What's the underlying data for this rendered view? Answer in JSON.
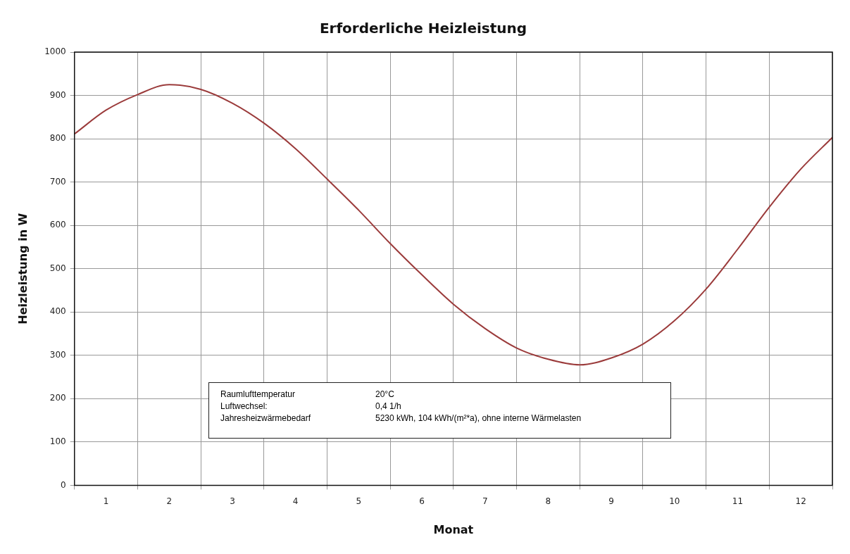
{
  "chart_data": {
    "type": "line",
    "title": "Erforderliche Heizleistung",
    "xlabel": "Monat",
    "ylabel": "Heizleistung in W",
    "x": [
      0,
      0.5,
      1,
      1.5,
      2,
      2.5,
      3,
      3.5,
      4,
      4.5,
      5,
      5.5,
      6,
      6.5,
      7,
      7.5,
      8,
      8.5,
      9,
      9.5,
      10,
      10.5,
      11,
      11.5,
      12
    ],
    "series": [
      {
        "color": "#9b3b3b",
        "values": [
          811,
          866,
          902,
          925,
          914,
          882,
          836,
          777,
          707,
          635,
          558,
          486,
          418,
          362,
          317,
          291,
          278,
          294,
          326,
          380,
          453,
          545,
          642,
          730,
          803
        ]
      }
    ],
    "xlim": [
      0,
      12
    ],
    "xticks": [
      {
        "value": 0,
        "label": null
      },
      {
        "value": 0.5,
        "label": "1"
      },
      {
        "value": 1,
        "label": null
      },
      {
        "value": 1.5,
        "label": "2"
      },
      {
        "value": 2,
        "label": null
      },
      {
        "value": 2.5,
        "label": "3"
      },
      {
        "value": 3,
        "label": null
      },
      {
        "value": 3.5,
        "label": "4"
      },
      {
        "value": 4,
        "label": null
      },
      {
        "value": 4.5,
        "label": "5"
      },
      {
        "value": 5,
        "label": null
      },
      {
        "value": 5.5,
        "label": "6"
      },
      {
        "value": 6,
        "label": null
      },
      {
        "value": 6.5,
        "label": "7"
      },
      {
        "value": 7,
        "label": null
      },
      {
        "value": 7.5,
        "label": "8"
      },
      {
        "value": 8,
        "label": null
      },
      {
        "value": 8.5,
        "label": "9"
      },
      {
        "value": 9,
        "label": null
      },
      {
        "value": 9.5,
        "label": "10"
      },
      {
        "value": 10,
        "label": null
      },
      {
        "value": 10.5,
        "label": "11"
      },
      {
        "value": 11,
        "label": null
      },
      {
        "value": 11.5,
        "label": "12"
      },
      {
        "value": 12,
        "label": null
      }
    ],
    "ylim": [
      0,
      1000
    ],
    "yticks": [
      0,
      100,
      200,
      300,
      400,
      500,
      600,
      700,
      800,
      900,
      1000
    ],
    "grid": true,
    "legend": false,
    "marker": "none",
    "line_style": "solid",
    "annotations": [
      "Raumlufttemperatur",
      "20°C",
      "Luftwechsel:",
      "0,4 1/h",
      "Jahresheizwärmebedarf",
      "5230 kWh, 104 kWh/(m²*a), ohne interne Wärmelasten"
    ]
  }
}
